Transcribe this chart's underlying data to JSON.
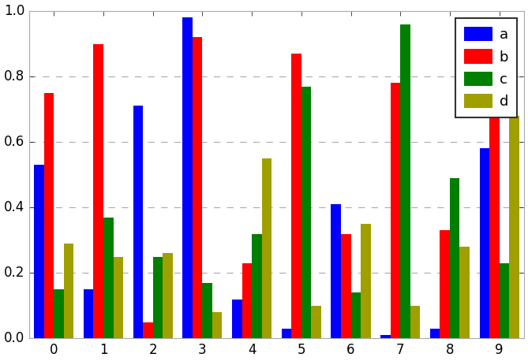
{
  "categories": [
    "0",
    "1",
    "2",
    "3",
    "4",
    "5",
    "6",
    "7",
    "8",
    "9"
  ],
  "series": {
    "a": [
      0.53,
      0.15,
      0.71,
      0.98,
      0.12,
      0.03,
      0.41,
      0.01,
      0.03,
      0.58
    ],
    "b": [
      0.75,
      0.9,
      0.05,
      0.92,
      0.23,
      0.87,
      0.32,
      0.78,
      0.33,
      0.7
    ],
    "c": [
      0.15,
      0.37,
      0.25,
      0.17,
      0.32,
      0.77,
      0.14,
      0.96,
      0.49,
      0.23
    ],
    "d": [
      0.29,
      0.25,
      0.26,
      0.08,
      0.55,
      0.1,
      0.35,
      0.1,
      0.28,
      0.68
    ]
  },
  "colors": {
    "a": "#0000ff",
    "b": "#ff0000",
    "c": "#007f00",
    "d": "#9f9f00"
  },
  "legend_labels": [
    "a",
    "b",
    "c",
    "d"
  ],
  "ylim": [
    0.0,
    1.0
  ],
  "yticks": [
    0.0,
    0.2,
    0.4,
    0.6,
    0.8,
    1.0
  ],
  "bar_width": 0.2,
  "grid_color": "#aaaaaa",
  "background_color": "#ffffff",
  "figsize": [
    6.69,
    4.58
  ],
  "dpi": 100
}
